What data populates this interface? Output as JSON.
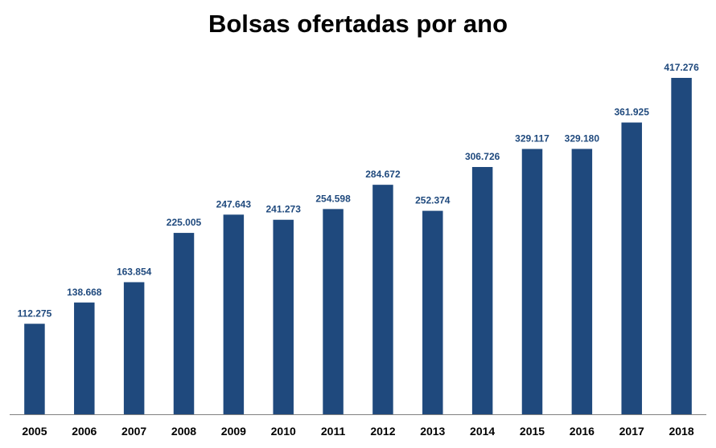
{
  "chart_data": {
    "type": "bar",
    "title": "Bolsas ofertadas por ano",
    "xlabel": "",
    "ylabel": "",
    "categories": [
      "2005",
      "2006",
      "2007",
      "2008",
      "2009",
      "2010",
      "2011",
      "2012",
      "2013",
      "2014",
      "2015",
      "2016",
      "2017",
      "2018"
    ],
    "values": [
      112275,
      138668,
      163854,
      225005,
      247643,
      241273,
      254598,
      284672,
      252374,
      306726,
      329117,
      329180,
      361925,
      417276
    ],
    "value_labels": [
      "112.275",
      "138.668",
      "163.854",
      "225.005",
      "247.643",
      "241.273",
      "254.598",
      "284.672",
      "252.374",
      "306.726",
      "329.117",
      "329.180",
      "361.925",
      "417.276"
    ],
    "ylim": [
      0,
      430000
    ],
    "grid": false,
    "legend": "none",
    "bar_color": "#1f497d",
    "label_color": "#1f497d",
    "axis_color": "#808080"
  }
}
